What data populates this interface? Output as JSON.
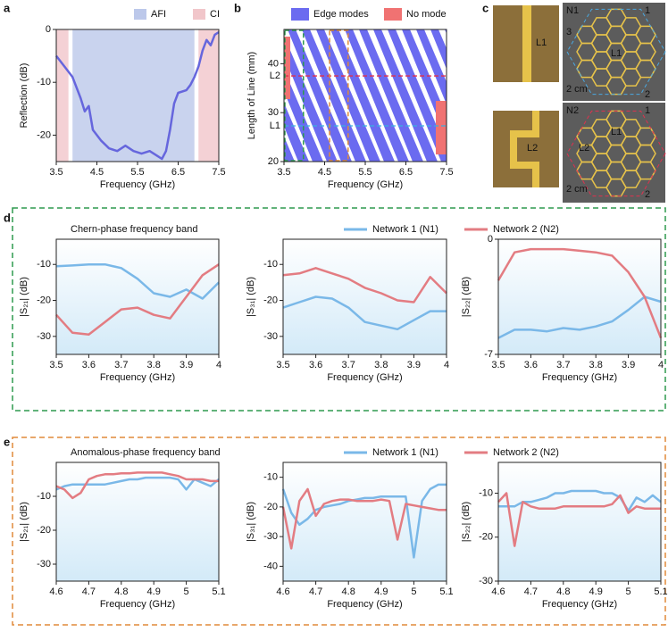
{
  "panel_letters": [
    "a",
    "b",
    "c",
    "d",
    "e"
  ],
  "panel_c": {
    "top": {
      "network": "N1",
      "ports": [
        "1",
        "2",
        "3"
      ],
      "line": "L1",
      "inset": "L1",
      "scale": "2 cm"
    },
    "bottom": {
      "network": "N2",
      "ports": [
        "1",
        "2"
      ],
      "line": "L1",
      "line2": "L2",
      "inset": "L2",
      "scale": "2 cm"
    }
  },
  "chart_data": [
    {
      "type": "line",
      "xlabel": "Frequency (GHz)",
      "ylabel": "Reflection (dB)",
      "xlim": [
        3.5,
        7.5
      ],
      "xticks": [
        3.5,
        4.5,
        5.5,
        6.5,
        7.5
      ],
      "ylim": [
        -25,
        0
      ],
      "yticks": [
        0,
        -10,
        -20
      ],
      "regions": [
        {
          "name": "AFI",
          "color": "#bcc8ea",
          "spans": [
            [
              3.9,
              6.9
            ]
          ]
        },
        {
          "name": "CI",
          "color": "#f1c6ca",
          "spans": [
            [
              3.5,
              3.8
            ],
            [
              7.0,
              7.5
            ]
          ]
        }
      ],
      "x": [
        3.5,
        3.7,
        3.9,
        4.1,
        4.2,
        4.3,
        4.4,
        4.6,
        4.8,
        5.0,
        5.2,
        5.4,
        5.6,
        5.8,
        6.0,
        6.1,
        6.2,
        6.3,
        6.4,
        6.5,
        6.7,
        6.8,
        6.9,
        7.0,
        7.1,
        7.2,
        7.3,
        7.4,
        7.5
      ],
      "series": [
        {
          "color": "#6666dd",
          "values": [
            -5,
            -7,
            -9,
            -13,
            -15.5,
            -14.5,
            -19,
            -21,
            -22.5,
            -23,
            -22,
            -23,
            -23.5,
            -23,
            -24,
            -24.5,
            -23,
            -19,
            -14,
            -12,
            -11.5,
            -10.5,
            -9,
            -7,
            -4,
            -2,
            -3,
            -1,
            -0.5
          ]
        }
      ]
    },
    {
      "type": "bandmap",
      "xlabel": "Frequency (GHz)",
      "ylabel": "Length of Line (mm)",
      "xlim": [
        3.5,
        7.5
      ],
      "xticks": [
        3.5,
        4.5,
        5.5,
        6.5,
        7.5
      ],
      "ylim": [
        20,
        47
      ],
      "yticks": [
        20,
        30,
        40
      ],
      "legend": [
        {
          "name": "Edge modes",
          "color": "#6b6bf0"
        },
        {
          "name": "No mode",
          "color": "#f07272"
        }
      ],
      "lines": [
        {
          "label": "L1",
          "y": 27.3,
          "color": "#38b0e0"
        },
        {
          "label": "L2",
          "y": 37.5,
          "color": "#e0304e"
        }
      ],
      "boxes": [
        {
          "xlim": [
            3.5,
            4.0
          ],
          "color": "#2e9a4e"
        },
        {
          "xlim": [
            4.6,
            5.1
          ],
          "color": "#e08a3a"
        }
      ]
    },
    {
      "type": "line",
      "title": "Chern-phase frequency band",
      "xlabel": "Frequency (GHz)",
      "ylabel": "|S₂₁| (dB)",
      "xlim": [
        3.5,
        4
      ],
      "xticks": [
        3.5,
        3.6,
        3.7,
        3.8,
        3.9,
        4
      ],
      "ylim": [
        -35,
        -3
      ],
      "yticks": [
        -10,
        -20,
        -30
      ],
      "x": [
        3.5,
        3.55,
        3.6,
        3.65,
        3.7,
        3.75,
        3.8,
        3.85,
        3.9,
        3.95,
        4.0
      ],
      "series": [
        {
          "name": "Network 1 (N1)",
          "color": "#7ab8e8",
          "values": [
            -10.5,
            -10.3,
            -10,
            -10,
            -11,
            -14,
            -18,
            -19,
            -17,
            -19.5,
            -15
          ]
        },
        {
          "name": "Network 2 (N2)",
          "color": "#e37c82",
          "values": [
            -24,
            -29,
            -29.5,
            -26,
            -22.5,
            -22,
            -24,
            -25,
            -19,
            -13,
            -10
          ]
        }
      ]
    },
    {
      "type": "line",
      "xlabel": "Frequency (GHz)",
      "ylabel": "|S₃₁| (dB)",
      "xlim": [
        3.5,
        4
      ],
      "xticks": [
        3.5,
        3.6,
        3.7,
        3.8,
        3.9,
        4
      ],
      "ylim": [
        -35,
        -3
      ],
      "yticks": [
        -10,
        -20,
        -30
      ],
      "x": [
        3.5,
        3.55,
        3.6,
        3.65,
        3.7,
        3.75,
        3.8,
        3.85,
        3.9,
        3.95,
        4.0
      ],
      "series": [
        {
          "color": "#7ab8e8",
          "values": [
            -22,
            -20.5,
            -19,
            -19.5,
            -22,
            -26,
            -27,
            -28,
            -25.5,
            -23,
            -23
          ]
        },
        {
          "color": "#e37c82",
          "values": [
            -13,
            -12.5,
            -11,
            -12.5,
            -14,
            -16.5,
            -18,
            -20,
            -20.5,
            -13.5,
            -18
          ]
        }
      ]
    },
    {
      "type": "line",
      "xlabel": "Frequency (GHz)",
      "ylabel": "|S₂₂| (dB)",
      "xlim": [
        3.5,
        4
      ],
      "xticks": [
        3.5,
        3.6,
        3.7,
        3.8,
        3.9,
        4
      ],
      "ylim": [
        -7,
        0
      ],
      "yticks": [
        0,
        -7
      ],
      "x": [
        3.5,
        3.55,
        3.6,
        3.65,
        3.7,
        3.75,
        3.8,
        3.85,
        3.9,
        3.95,
        4.0
      ],
      "series": [
        {
          "color": "#7ab8e8",
          "values": [
            -6,
            -5.5,
            -5.5,
            -5.6,
            -5.4,
            -5.5,
            -5.3,
            -5,
            -4.3,
            -3.5,
            -3.8
          ]
        },
        {
          "color": "#e37c82",
          "values": [
            -2.5,
            -0.8,
            -0.6,
            -0.6,
            -0.6,
            -0.7,
            -0.8,
            -1,
            -2,
            -3.5,
            -6
          ]
        }
      ]
    },
    {
      "type": "line",
      "title": "Anomalous-phase frequency band",
      "xlabel": "Frequency (GHz)",
      "ylabel": "|S₂₁| (dB)",
      "xlim": [
        4.6,
        5.1
      ],
      "xticks": [
        4.6,
        4.7,
        4.8,
        4.9,
        5.0,
        5.1
      ],
      "ylim": [
        -35,
        0
      ],
      "yticks": [
        -10,
        -20,
        -30
      ],
      "x": [
        4.6,
        4.625,
        4.65,
        4.675,
        4.7,
        4.725,
        4.75,
        4.775,
        4.8,
        4.825,
        4.85,
        4.875,
        4.9,
        4.925,
        4.95,
        4.975,
        5.0,
        5.025,
        5.05,
        5.075,
        5.1
      ],
      "series": [
        {
          "name": "Network 1 (N1)",
          "color": "#7ab8e8",
          "values": [
            -8,
            -7,
            -6.5,
            -6.5,
            -6.5,
            -6.5,
            -6.5,
            -6,
            -5.5,
            -5,
            -5,
            -4.5,
            -4.5,
            -4.5,
            -4.5,
            -5,
            -8,
            -5,
            -6,
            -7,
            -5
          ]
        },
        {
          "name": "Network 2 (N2)",
          "color": "#e37c82",
          "values": [
            -7,
            -8,
            -10.5,
            -9,
            -5,
            -4,
            -3.5,
            -3.5,
            -3.2,
            -3.2,
            -3,
            -3,
            -3,
            -3,
            -3.5,
            -4,
            -5,
            -5,
            -5,
            -5.5,
            -5.5
          ]
        }
      ]
    },
    {
      "type": "line",
      "xlabel": "Frequency (GHz)",
      "ylabel": "|S₃₁| (dB)",
      "xlim": [
        4.6,
        5.1
      ],
      "xticks": [
        4.6,
        4.7,
        4.8,
        4.9,
        5.0,
        5.1
      ],
      "ylim": [
        -45,
        -5
      ],
      "yticks": [
        -10,
        -20,
        -30,
        -40
      ],
      "x": [
        4.6,
        4.625,
        4.65,
        4.675,
        4.7,
        4.725,
        4.75,
        4.775,
        4.8,
        4.825,
        4.85,
        4.875,
        4.9,
        4.925,
        4.95,
        4.975,
        5.0,
        5.025,
        5.05,
        5.075,
        5.1
      ],
      "series": [
        {
          "color": "#7ab8e8",
          "values": [
            -14,
            -22,
            -26,
            -24,
            -21,
            -20,
            -19.5,
            -19,
            -18,
            -17.5,
            -17,
            -17,
            -16.5,
            -16.5,
            -16.5,
            -16.5,
            -37,
            -18,
            -14,
            -12.5,
            -12.5
          ]
        },
        {
          "color": "#e37c82",
          "values": [
            -20,
            -34,
            -18,
            -14,
            -23,
            -19,
            -18,
            -17.5,
            -17.5,
            -18,
            -18,
            -18,
            -17.5,
            -18,
            -31,
            -19,
            -19.5,
            -20,
            -20.5,
            -21,
            -21
          ]
        }
      ]
    },
    {
      "type": "line",
      "xlabel": "Frequency (GHz)",
      "ylabel": "|S₂₂| (dB)",
      "xlim": [
        4.6,
        5.1
      ],
      "xticks": [
        4.6,
        4.7,
        4.8,
        4.9,
        5.0,
        5.1
      ],
      "ylim": [
        -30,
        -3
      ],
      "yticks": [
        -10,
        -20,
        -30
      ],
      "x": [
        4.6,
        4.625,
        4.65,
        4.675,
        4.7,
        4.725,
        4.75,
        4.775,
        4.8,
        4.825,
        4.85,
        4.875,
        4.9,
        4.925,
        4.95,
        4.975,
        5.0,
        5.025,
        5.05,
        5.075,
        5.1
      ],
      "series": [
        {
          "color": "#7ab8e8",
          "values": [
            -13,
            -13,
            -13,
            -12,
            -12,
            -11.5,
            -11,
            -10,
            -10,
            -9.5,
            -9.5,
            -9.5,
            -9.5,
            -10,
            -10,
            -11,
            -14,
            -11,
            -12,
            -10.5,
            -12
          ]
        },
        {
          "color": "#e37c82",
          "values": [
            -12,
            -10,
            -22,
            -12,
            -13,
            -13.5,
            -13.5,
            -13.5,
            -13,
            -13,
            -13,
            -13,
            -13,
            -13,
            -12.5,
            -10.5,
            -14.5,
            -13,
            -13.5,
            -13.5,
            -13.5
          ]
        }
      ]
    }
  ]
}
